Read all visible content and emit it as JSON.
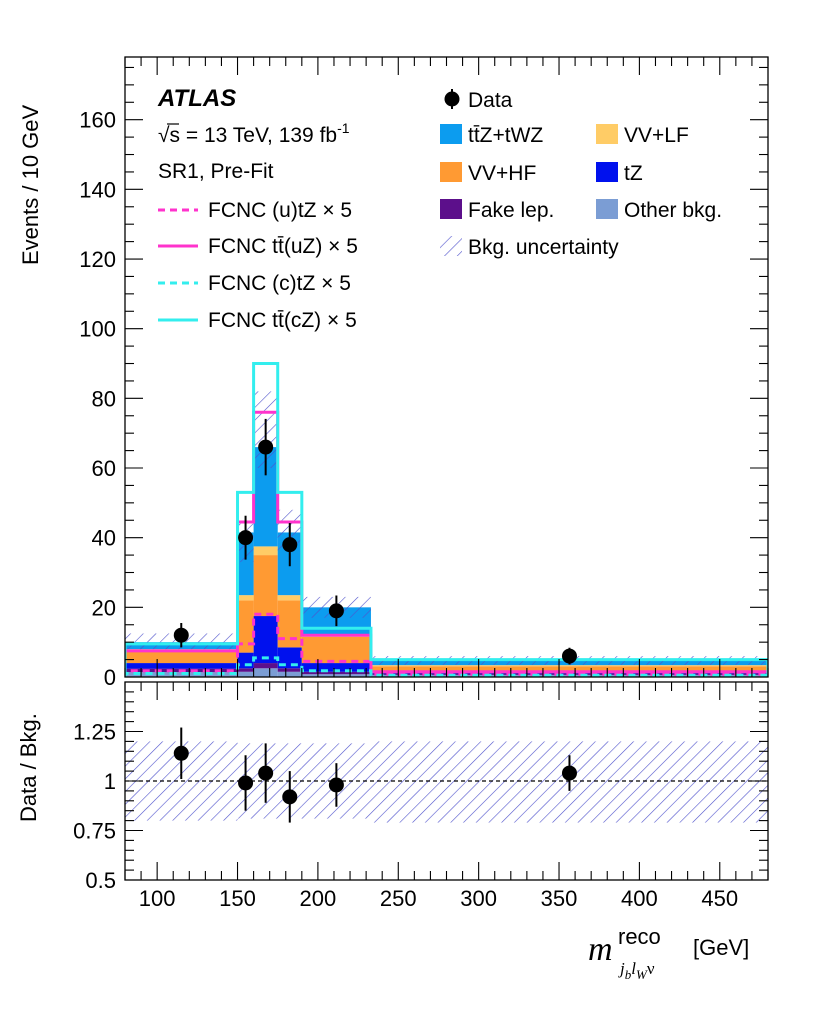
{
  "chart_data": [
    {
      "type": "bar",
      "stacked": true,
      "title": "ATLAS",
      "subtitle_lines": [
        "√s = 13 TeV, 139 fb",
        "SR1, Pre-Fit"
      ],
      "lumi_sup": "-1",
      "ylabel": "Events / 10 GeV",
      "ylim": [
        0,
        178
      ],
      "yticks": [
        0,
        20,
        40,
        60,
        80,
        100,
        120,
        140,
        160
      ],
      "bin_edges": [
        80,
        150,
        160,
        175,
        190,
        233,
        480
      ],
      "series": [
        {
          "name": "Other bkg.",
          "color": "#7b9dd4",
          "values": [
            1.4,
            1.5,
            2.5,
            1.5,
            0.8,
            0.6
          ]
        },
        {
          "name": "Fake lep.",
          "color": "#5c0f8b",
          "values": [
            1.0,
            1.0,
            1.5,
            1.0,
            0.7,
            0.4
          ]
        },
        {
          "name": "tZ",
          "color": "#0011ee",
          "values": [
            1.6,
            4.5,
            13.5,
            6.0,
            2.5,
            0.6
          ]
        },
        {
          "name": "VV+HF",
          "color": "#ff9a33",
          "values": [
            3.5,
            15.0,
            17.5,
            13.5,
            7.5,
            1.5
          ]
        },
        {
          "name": "VV+LF",
          "color": "#ffcc66",
          "values": [
            0.5,
            1.5,
            2.5,
            1.5,
            0.8,
            0.3
          ]
        },
        {
          "name": "tt̄Z+tWZ",
          "color": "#0c9cef",
          "values": [
            2.0,
            18.0,
            28.5,
            18.0,
            7.7,
            1.2
          ]
        }
      ],
      "uncertainty": {
        "name": "Bkg. uncertainty",
        "up": [
          12.5,
          44.0,
          82.0,
          48.0,
          23.0,
          6.0
        ],
        "down": [
          8.0,
          33.0,
          60.0,
          36.0,
          17.0,
          3.5
        ]
      },
      "signals": [
        {
          "name": "FCNC (u)tZ × 5",
          "color": "#ff33cc",
          "dash": true,
          "values": [
            1.8,
            9.5,
            18.0,
            11.0,
            4.5,
            0.8
          ]
        },
        {
          "name": "FCNC tt̄(uZ) × 5",
          "color": "#ff33cc",
          "dash": false,
          "values": [
            7.5,
            44.5,
            76.0,
            44.5,
            12.0,
            1.5
          ]
        },
        {
          "name": "FCNC (c)tZ × 5",
          "color": "#33eeee",
          "dash": true,
          "values": [
            1.0,
            3.5,
            5.5,
            3.5,
            1.8,
            0.5
          ]
        },
        {
          "name": "FCNC tt̄(cZ) × 5",
          "color": "#33eeee",
          "dash": false,
          "values": [
            9.5,
            53.0,
            90.0,
            53.0,
            14.0,
            5.0
          ]
        }
      ],
      "data_points": {
        "name": "Data",
        "x": [
          115,
          155,
          167.5,
          182.5,
          211.5,
          356.5
        ],
        "y": [
          12,
          40,
          66,
          38,
          19,
          6
        ],
        "err_low": [
          3.5,
          6.3,
          8.1,
          6.2,
          4.4,
          2.4
        ],
        "err_high": [
          3.5,
          6.3,
          8.1,
          6.2,
          4.4,
          2.4
        ]
      }
    },
    {
      "type": "scatter",
      "ylabel": "Data / Bkg.",
      "xlabel": "[GeV]",
      "xlabel_symbol": "m",
      "xlabel_sup": "reco",
      "xlabel_sub": "j_b l_W ν",
      "xlim": [
        80,
        480
      ],
      "xticks": [
        100,
        150,
        200,
        250,
        300,
        350,
        400,
        450
      ],
      "ylim": [
        0.5,
        1.5
      ],
      "yticks": [
        0.5,
        0.75,
        1,
        1.25
      ],
      "ytick_labels": [
        "0.5",
        "0.75",
        "1",
        "1.25"
      ],
      "reference_line": 1,
      "uncertainty_band": {
        "edges": [
          80,
          150,
          190,
          233,
          480
        ],
        "up": [
          1.2,
          1.19,
          1.19,
          1.2
        ],
        "down": [
          0.8,
          0.81,
          0.81,
          0.79
        ]
      },
      "points": {
        "x": [
          115,
          155,
          167.5,
          182.5,
          211.5,
          356.5
        ],
        "y": [
          1.14,
          0.99,
          1.04,
          0.92,
          0.98,
          1.04
        ],
        "err": [
          0.13,
          0.14,
          0.15,
          0.13,
          0.11,
          0.09
        ]
      }
    }
  ]
}
